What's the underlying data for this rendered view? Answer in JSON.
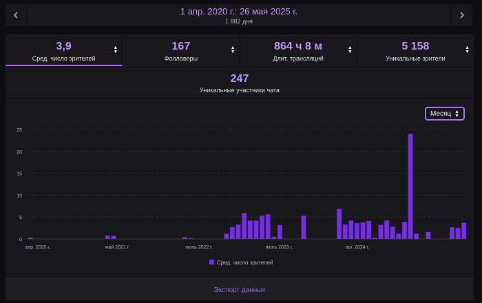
{
  "date_range": {
    "title": "1 апр. 2020 г.: 26 мая 2025 г.",
    "subtitle": "1 882 дня",
    "prev_icon": "chevron-left-icon",
    "next_icon": "chevron-right-icon"
  },
  "stats": [
    {
      "value": "3,9",
      "label": "Сред. число зрителей",
      "active": true
    },
    {
      "value": "167",
      "label": "Фолловеры",
      "active": false
    },
    {
      "value": "864 ч 8 м",
      "label": "Длит. трансляций",
      "active": false
    },
    {
      "value": "5 158",
      "label": "Уникальные зрители",
      "active": false
    }
  ],
  "stat_wide": {
    "value": "247",
    "label": "Уникальные участники чата"
  },
  "period_select": {
    "selected": "Месяц"
  },
  "colors": {
    "accent": "#a970ff",
    "bar": "#772ce8",
    "accent_text": "#bf94ff"
  },
  "chart_data": {
    "type": "bar",
    "x_tick_labels": [
      "апр. 2020 г.",
      "май 2021 г.",
      "июнь 2022 г.",
      "июль 2023 г.",
      "авг. 2024 г."
    ],
    "y_ticks": [
      0,
      5,
      10,
      15,
      20,
      25
    ],
    "ylim": [
      0,
      25
    ],
    "grid": true,
    "legend_position": "bottom-center",
    "series": [
      {
        "name": "Сред. число зрителей",
        "values": [
          0.3,
          0,
          0,
          0,
          0,
          0,
          0,
          0,
          0,
          0,
          0,
          0,
          0,
          0.8,
          0.7,
          0,
          0,
          0,
          0,
          0,
          0,
          0,
          0,
          0,
          0,
          0,
          0.4,
          0.2,
          0,
          0,
          0,
          0,
          0,
          1.2,
          2.7,
          3.3,
          5.9,
          4.2,
          4.2,
          5.3,
          5.6,
          0.5,
          3.2,
          0,
          0,
          0,
          5.3,
          0,
          0,
          0,
          0,
          0,
          6.9,
          3.3,
          4.2,
          3.6,
          3.8,
          4.1,
          0.3,
          3.2,
          4.2,
          2.8,
          1.2,
          3.9,
          24.0,
          1.2,
          0,
          1.6,
          0,
          0,
          0,
          2.7,
          2.5,
          3.7
        ]
      }
    ]
  },
  "footer": {
    "export_label": "Экспорт данных"
  }
}
